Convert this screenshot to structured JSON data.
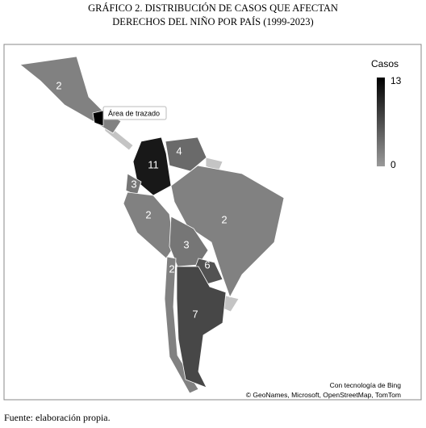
{
  "header": {
    "title_lines": [
      "GRÁFICO 2. DISTRIBUCIÓN DE CASOS QUE AFECTAN",
      "DERECHOS DEL NIÑO POR PAÍS (1999-2023)"
    ]
  },
  "map": {
    "legend": {
      "title": "Casos",
      "max": 13,
      "min": 0
    },
    "tooltip": "Área de trazado",
    "regions": [
      {
        "value": 2,
        "label": "2"
      },
      {
        "value": 13
      },
      {
        "value": 11,
        "label": "11"
      },
      {
        "value": 4,
        "label": "4"
      },
      {
        "value": 3,
        "label": "3"
      },
      {
        "value": 2,
        "label": "2"
      },
      {
        "value": 2,
        "label": "2"
      },
      {
        "value": 3,
        "label": "3"
      },
      {
        "value": 6,
        "label": "6"
      },
      {
        "value": 2,
        "label": "2"
      },
      {
        "value": 7,
        "label": "7"
      }
    ],
    "attribution": [
      "Con tecnología de Bing",
      "© GeoNames, Microsoft, OpenStreetMap, TomTom"
    ]
  },
  "footer": "Fuente: elaboración propia."
}
